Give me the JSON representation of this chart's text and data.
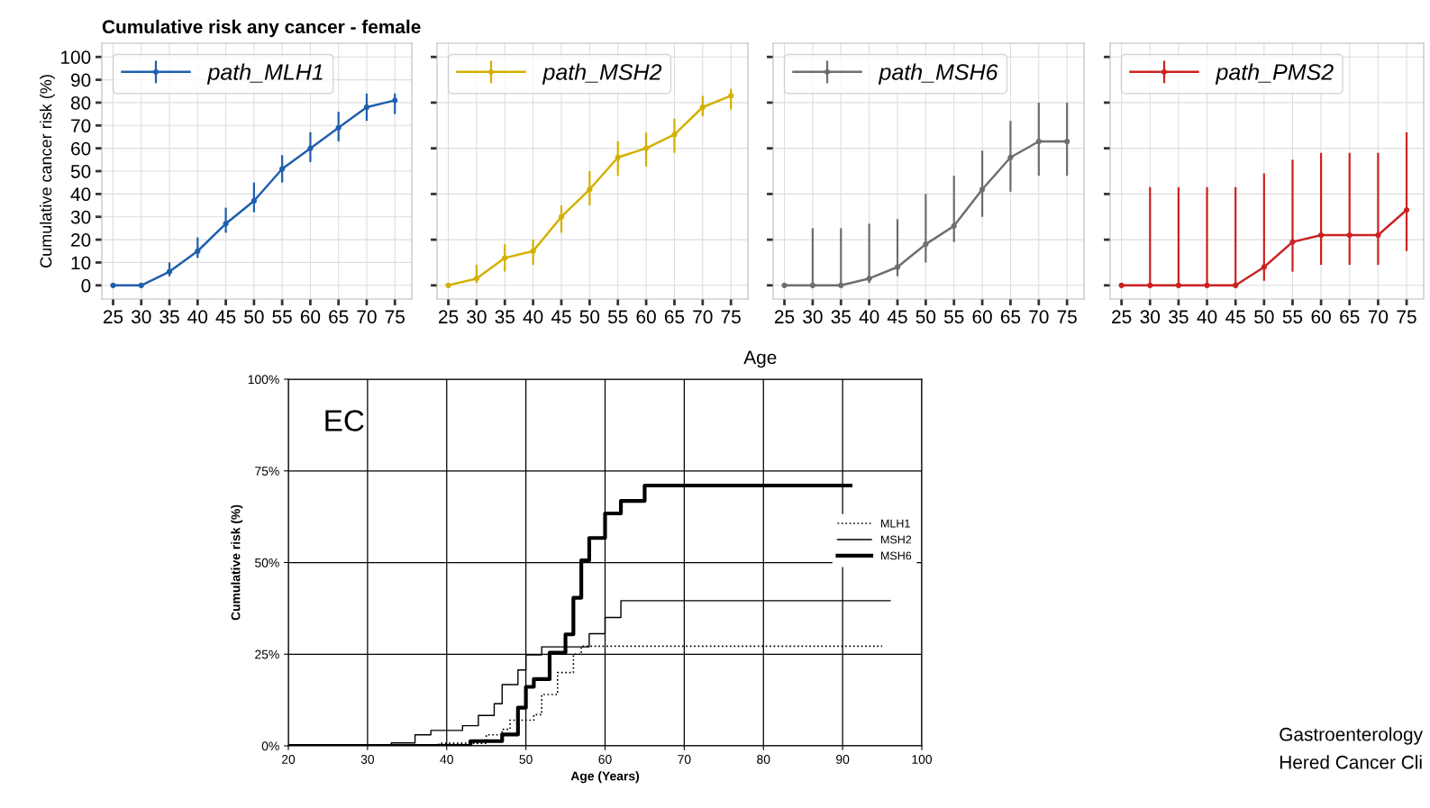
{
  "chart_data": [
    {
      "type": "line",
      "title": "Cumulative risk any cancer - female",
      "ylabel": "Cumulative cancer risk (%)",
      "x": [
        25,
        30,
        35,
        40,
        45,
        50,
        55,
        60,
        65,
        70,
        75
      ],
      "xlim": [
        23,
        78
      ],
      "xticks": [
        25,
        30,
        35,
        40,
        45,
        50,
        55,
        60,
        65,
        70,
        75
      ],
      "ylim": [
        -6,
        106
      ],
      "yticks": [
        0,
        10,
        20,
        30,
        40,
        50,
        60,
        70,
        80,
        90,
        100
      ],
      "grid": true,
      "legend": "top left",
      "marker": "circle",
      "series": [
        {
          "name": "path_MLH1",
          "color": "#1f5fad",
          "values": [
            0,
            0,
            6,
            15,
            27,
            37,
            51,
            60,
            69,
            78,
            81
          ],
          "errors": [
            null,
            null,
            [
              4,
              10
            ],
            [
              12,
              21
            ],
            [
              23,
              34
            ],
            [
              32,
              45
            ],
            [
              45,
              57
            ],
            [
              54,
              67
            ],
            [
              63,
              76
            ],
            [
              72,
              84
            ],
            [
              75,
              84
            ]
          ]
        }
      ]
    },
    {
      "type": "line",
      "xlabel": "Age",
      "x": [
        25,
        30,
        35,
        40,
        45,
        50,
        55,
        60,
        65,
        70,
        75
      ],
      "xlim": [
        23,
        78
      ],
      "xticks": [
        25,
        30,
        35,
        40,
        45,
        50,
        55,
        60,
        65,
        70,
        75
      ],
      "ylim": [
        -6,
        106
      ],
      "tick_labels": "x",
      "grid": true,
      "legend": "top left",
      "marker": "circle",
      "series": [
        {
          "name": "path_MSH2",
          "color": "#d4b000",
          "values": [
            0,
            3,
            12,
            15,
            30,
            42,
            56,
            60,
            66,
            78,
            83
          ],
          "errors": [
            null,
            [
              1,
              9
            ],
            [
              6,
              18
            ],
            [
              9,
              20
            ],
            [
              23,
              35
            ],
            [
              35,
              50
            ],
            [
              48,
              63
            ],
            [
              52,
              67
            ],
            [
              58,
              73
            ],
            [
              74,
              83
            ],
            [
              77,
              86
            ]
          ]
        }
      ]
    },
    {
      "type": "line",
      "x": [
        25,
        30,
        35,
        40,
        45,
        50,
        55,
        60,
        65,
        70,
        75
      ],
      "xlim": [
        23,
        78
      ],
      "xticks": [
        25,
        30,
        35,
        40,
        45,
        50,
        55,
        60,
        65,
        70,
        75
      ],
      "ylim": [
        -6,
        106
      ],
      "tick_labels": "x",
      "grid": true,
      "legend": "top left",
      "marker": "circle",
      "series": [
        {
          "name": "path_MSH6",
          "color": "#6e6e6e",
          "values": [
            0,
            0,
            0,
            3,
            8,
            18,
            26,
            42,
            56,
            63,
            63
          ],
          "errors": [
            null,
            [
              0,
              25
            ],
            [
              0,
              25
            ],
            [
              1,
              27
            ],
            [
              4,
              29
            ],
            [
              10,
              40
            ],
            [
              19,
              48
            ],
            [
              30,
              59
            ],
            [
              41,
              72
            ],
            [
              48,
              80
            ],
            [
              48,
              80
            ]
          ]
        }
      ]
    },
    {
      "type": "line",
      "x": [
        25,
        30,
        35,
        40,
        45,
        50,
        55,
        60,
        65,
        70,
        75
      ],
      "xlim": [
        23,
        78
      ],
      "xticks": [
        25,
        30,
        35,
        40,
        45,
        50,
        55,
        60,
        65,
        70,
        75
      ],
      "ylim": [
        -6,
        106
      ],
      "tick_labels": "x",
      "grid": true,
      "legend": "top left",
      "marker": "circle",
      "series": [
        {
          "name": "path_PMS2",
          "color": "#cc2222",
          "values": [
            0,
            0,
            0,
            0,
            0,
            8,
            19,
            22,
            22,
            22,
            33
          ],
          "errors": [
            null,
            [
              0,
              43
            ],
            [
              0,
              43
            ],
            [
              0,
              43
            ],
            [
              0,
              43
            ],
            [
              2,
              49
            ],
            [
              6,
              55
            ],
            [
              9,
              58
            ],
            [
              9,
              58
            ],
            [
              9,
              58
            ],
            [
              15,
              67
            ]
          ]
        }
      ]
    },
    {
      "type": "step",
      "xlabel": "Age (Years)",
      "ylabel": "Cumulative risk (%)",
      "xlim": [
        20,
        100
      ],
      "xticks": [
        20,
        30,
        40,
        50,
        60,
        70,
        80,
        90,
        100
      ],
      "ylim": [
        0,
        100
      ],
      "yticks": [
        {
          "value": 0,
          "label": "0%"
        },
        {
          "value": 25,
          "label": "25%"
        },
        {
          "value": 50,
          "label": "50%"
        },
        {
          "value": 75,
          "label": "75%"
        },
        {
          "value": 100,
          "label": "100%"
        }
      ],
      "grid": true,
      "legend": "right",
      "annotations": [
        "EC",
        "Gastroenterology",
        "Hered Cancer Cli"
      ],
      "series": [
        {
          "name": "MLH1",
          "color": "#000000",
          "line_style": "dotted",
          "x": [
            20,
            39,
            45,
            47,
            48,
            51,
            52,
            54,
            56,
            57,
            95
          ],
          "values": [
            0,
            0.7,
            3,
            4.5,
            7,
            8.5,
            14,
            20,
            25,
            27.2,
            27.2
          ]
        },
        {
          "name": "MSH2",
          "color": "#000000",
          "line_style": "solid",
          "x": [
            20,
            33,
            36,
            38,
            42,
            44,
            46,
            47,
            49,
            50,
            52,
            58,
            60,
            62,
            96
          ],
          "values": [
            0,
            0.8,
            3,
            4.2,
            5.5,
            8.3,
            11.5,
            16.7,
            20.7,
            24.8,
            27,
            30.6,
            35,
            39.6,
            39.6
          ]
        },
        {
          "name": "MSH6",
          "color": "#000000",
          "line_style": "solid",
          "x": [
            20,
            43,
            47,
            49,
            50,
            51,
            53,
            55,
            56,
            57,
            58,
            60,
            62,
            65,
            91
          ],
          "values": [
            0,
            1.3,
            3.1,
            10.4,
            16.1,
            18.2,
            25.4,
            30.4,
            40.4,
            50.6,
            56.7,
            63.4,
            66.8,
            71,
            71
          ]
        }
      ]
    }
  ]
}
